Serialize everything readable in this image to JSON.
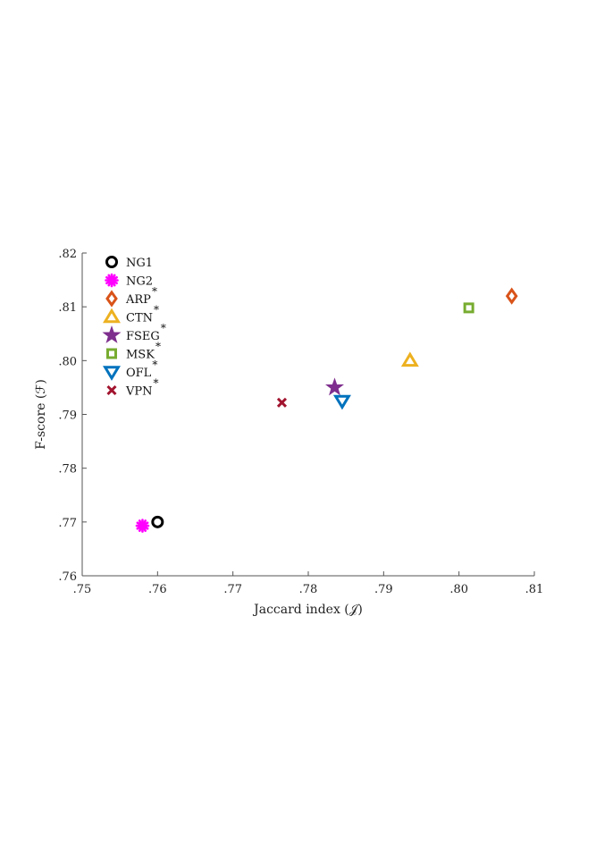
{
  "chart_data": {
    "type": "scatter",
    "xlabel": "Jaccard index (𝒥)",
    "ylabel": "F-score (ℱ)",
    "xlim": [
      0.75,
      0.81
    ],
    "ylim": [
      0.76,
      0.82
    ],
    "x_ticks": [
      0.75,
      0.76,
      0.77,
      0.78,
      0.79,
      0.8,
      0.81
    ],
    "x_tick_labels": [
      ".75",
      ".76",
      ".77",
      ".78",
      ".79",
      ".80",
      ".81"
    ],
    "y_ticks": [
      0.76,
      0.77,
      0.78,
      0.79,
      0.8,
      0.81,
      0.82
    ],
    "y_tick_labels": [
      ".76",
      ".77",
      ".78",
      ".79",
      ".80",
      ".81",
      ".82"
    ],
    "grid": false,
    "legend_position": "top-left",
    "series": [
      {
        "name": "NG1",
        "starred": false,
        "marker": "circle",
        "color": "#000000",
        "x": 0.76,
        "y": 0.77
      },
      {
        "name": "NG2",
        "starred": false,
        "marker": "asterisk",
        "color": "#ff00ff",
        "x": 0.758,
        "y": 0.7693
      },
      {
        "name": "ARP",
        "starred": true,
        "marker": "diamond",
        "color": "#d95319",
        "x": 0.807,
        "y": 0.812
      },
      {
        "name": "CTN",
        "starred": true,
        "marker": "triangle-up",
        "color": "#edb120",
        "x": 0.7935,
        "y": 0.8
      },
      {
        "name": "FSEG",
        "starred": true,
        "marker": "star",
        "color": "#7e2f8e",
        "x": 0.7835,
        "y": 0.795
      },
      {
        "name": "MSK",
        "starred": true,
        "marker": "square",
        "color": "#77ac30",
        "x": 0.8013,
        "y": 0.8098
      },
      {
        "name": "OFL",
        "starred": true,
        "marker": "triangle-down",
        "color": "#0072bd",
        "x": 0.7845,
        "y": 0.7925
      },
      {
        "name": "VPN",
        "starred": true,
        "marker": "x",
        "color": "#a2142f",
        "x": 0.7765,
        "y": 0.7922
      }
    ],
    "star_symbol": "*"
  }
}
